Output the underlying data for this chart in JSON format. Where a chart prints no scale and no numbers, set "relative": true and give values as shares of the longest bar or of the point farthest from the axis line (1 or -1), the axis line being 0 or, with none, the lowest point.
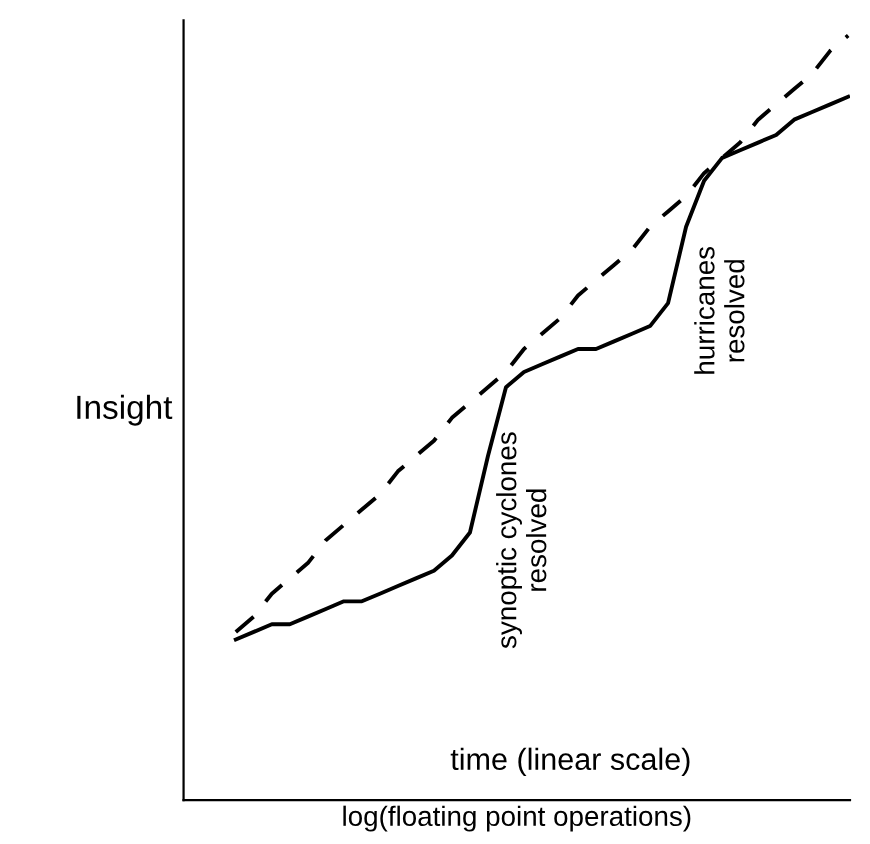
{
  "chart_data": {
    "type": "line",
    "relative": true,
    "tick_labels": false,
    "ylabel": "Insight",
    "xlabel": "log(floating point operations)",
    "annotations": [
      "synoptic cyclones\nresolved",
      "hurricanes\nresolved",
      "time (linear scale)"
    ],
    "categories": [
      null,
      null,
      null,
      null,
      null,
      null,
      null,
      null,
      null,
      null,
      null,
      null,
      null,
      null,
      null,
      null,
      null,
      null,
      null,
      null,
      null,
      null,
      null,
      null,
      null,
      null,
      null,
      null,
      null,
      null,
      null,
      null,
      null,
      null,
      null
    ],
    "series": [
      {
        "color": "#000000",
        "line_style": "dashed",
        "values": [
          0.22,
          0.24,
          0.27,
          0.29,
          0.31,
          0.34,
          0.36,
          0.38,
          0.4,
          0.43,
          0.45,
          0.47,
          0.5,
          0.52,
          0.54,
          0.56,
          0.59,
          0.61,
          0.63,
          0.66,
          0.68,
          0.7,
          0.72,
          0.75,
          0.77,
          0.79,
          0.82,
          0.84,
          0.86,
          0.89,
          0.91,
          0.93,
          0.95,
          0.98,
          1.0
        ]
      },
      {
        "color": "#000000",
        "line_style": "solid",
        "values": [
          0.21,
          0.22,
          0.23,
          0.23,
          0.24,
          0.25,
          0.26,
          0.26,
          0.27,
          0.28,
          0.29,
          0.3,
          0.32,
          0.35,
          0.45,
          0.54,
          0.56,
          0.57,
          0.58,
          0.59,
          0.59,
          0.6,
          0.61,
          0.62,
          0.65,
          0.75,
          0.81,
          0.84,
          0.85,
          0.86,
          0.87,
          0.89,
          0.9,
          0.91,
          0.92
        ]
      }
    ]
  }
}
